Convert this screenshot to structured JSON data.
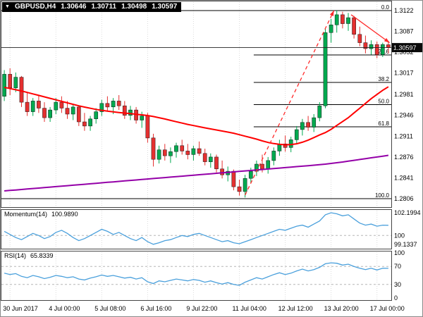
{
  "title_overlay": {
    "dropdown_icon": "▼",
    "symbol": "GBPUSD,H4",
    "open": "1.30646",
    "high": "1.30711",
    "low": "1.30498",
    "close": "1.30597"
  },
  "colors": {
    "up": "#00A94F",
    "down": "#E53030",
    "ma_fast": "#FF0000",
    "ma_slow": "#9400A8",
    "indicator": "#4AA0DC",
    "fib": "#000000",
    "grid": "#DADADA",
    "trend": "#FF2A2A",
    "bid_line": "#222222",
    "axis_text": "#000000"
  },
  "chart_data": [
    {
      "type": "candlestick",
      "title": "GBPUSD,H4",
      "ylim": [
        1.2792,
        1.3136
      ],
      "y_ticks": [
        "1.3122",
        "1.3087",
        "1.3052",
        "1.3017",
        "1.2981",
        "1.2946",
        "1.2911",
        "1.2876",
        "1.2841",
        "1.2806"
      ],
      "x_ticks": [
        {
          "label": "30 Jun 2017",
          "bar": 1
        },
        {
          "label": "4 Jul 00:00",
          "bar": 9
        },
        {
          "label": "5 Jul 08:00",
          "bar": 17
        },
        {
          "label": "6 Jul 16:00",
          "bar": 25
        },
        {
          "label": "9 Jul 22:00",
          "bar": 33
        },
        {
          "label": "11 Jul 04:00",
          "bar": 41
        },
        {
          "label": "12 Jul 12:00",
          "bar": 49
        },
        {
          "label": "13 Jul 20:00",
          "bar": 57
        },
        {
          "label": "17 Jul 00:00",
          "bar": 65
        }
      ],
      "current_price": "1.30597",
      "current_price_value": 1.30597,
      "fibonacci": {
        "start_bar": 44,
        "levels": [
          {
            "label": "0.0",
            "price": 1.3122,
            "full_width": true
          },
          {
            "label": "23.6",
            "price": 1.30474,
            "full_width": false
          },
          {
            "label": "38.2",
            "price": 1.30013,
            "full_width": false
          },
          {
            "label": "50.0",
            "price": 1.2964,
            "full_width": false
          },
          {
            "label": "61.8",
            "price": 1.29267,
            "full_width": false
          },
          {
            "label": "100.0",
            "price": 1.2806,
            "full_width": true
          }
        ]
      },
      "annotations": {
        "trendline": {
          "from_bar": 42,
          "from_price": 1.2812,
          "to_bar": 57.5,
          "to_price": 1.3122,
          "style": "dashed"
        },
        "pullback_arrow": {
          "from_bar": 60.5,
          "from_price": 1.3115,
          "to_bar": 67.2,
          "to_price": 1.3068,
          "style": "solid"
        }
      },
      "ohlc": [
        [
          1.2978,
          1.3022,
          1.297,
          1.3015
        ],
        [
          1.3015,
          1.3025,
          1.298,
          1.2992
        ],
        [
          1.2992,
          1.3018,
          1.2985,
          1.301
        ],
        [
          1.301,
          1.3012,
          1.296,
          1.2968
        ],
        [
          1.2968,
          1.2985,
          1.2945,
          1.2952
        ],
        [
          1.2952,
          1.2975,
          1.2945,
          1.297
        ],
        [
          1.297,
          1.298,
          1.295,
          1.2958
        ],
        [
          1.2958,
          1.2968,
          1.2935,
          1.2942
        ],
        [
          1.2942,
          1.296,
          1.2935,
          1.2955
        ],
        [
          1.2955,
          1.2975,
          1.2948,
          1.2968
        ],
        [
          1.2968,
          1.2978,
          1.295,
          1.2958
        ],
        [
          1.2958,
          1.297,
          1.294,
          1.2948
        ],
        [
          1.2948,
          1.2965,
          1.2938,
          1.296
        ],
        [
          1.296,
          1.2962,
          1.2928,
          1.2935
        ],
        [
          1.2935,
          1.295,
          1.292,
          1.2928
        ],
        [
          1.2928,
          1.2945,
          1.292,
          1.294
        ],
        [
          1.294,
          1.2958,
          1.2932,
          1.2952
        ],
        [
          1.2952,
          1.2972,
          1.2945,
          1.2966
        ],
        [
          1.2966,
          1.2978,
          1.2952,
          1.296
        ],
        [
          1.296,
          1.2975,
          1.2948,
          1.297
        ],
        [
          1.297,
          1.298,
          1.2955,
          1.2962
        ],
        [
          1.2962,
          1.297,
          1.294,
          1.2946
        ],
        [
          1.2946,
          1.2962,
          1.2938,
          1.2955
        ],
        [
          1.2955,
          1.296,
          1.2932,
          1.2938
        ],
        [
          1.2938,
          1.2952,
          1.2925,
          1.2945
        ],
        [
          1.2945,
          1.295,
          1.29,
          1.2908
        ],
        [
          1.2908,
          1.2915,
          1.286,
          1.2872
        ],
        [
          1.2872,
          1.2895,
          1.2865,
          1.2888
        ],
        [
          1.2888,
          1.2898,
          1.287,
          1.2878
        ],
        [
          1.2878,
          1.2892,
          1.2866,
          1.2885
        ],
        [
          1.2885,
          1.29,
          1.2875,
          1.2895
        ],
        [
          1.2895,
          1.2905,
          1.288,
          1.2886
        ],
        [
          1.2886,
          1.2898,
          1.2872,
          1.288
        ],
        [
          1.288,
          1.2895,
          1.287,
          1.289
        ],
        [
          1.289,
          1.2902,
          1.2878,
          1.2882
        ],
        [
          1.2882,
          1.289,
          1.2862,
          1.2868
        ],
        [
          1.2868,
          1.2882,
          1.2858,
          1.2876
        ],
        [
          1.2876,
          1.288,
          1.285,
          1.2856
        ],
        [
          1.2856,
          1.287,
          1.284,
          1.2846
        ],
        [
          1.2846,
          1.286,
          1.2835,
          1.2852
        ],
        [
          1.2852,
          1.2855,
          1.282,
          1.2826
        ],
        [
          1.2826,
          1.2838,
          1.2811,
          1.2818
        ],
        [
          1.2818,
          1.2846,
          1.2808,
          1.284
        ],
        [
          1.284,
          1.2858,
          1.2832,
          1.2852
        ],
        [
          1.2852,
          1.287,
          1.2844,
          1.2864
        ],
        [
          1.2864,
          1.288,
          1.285,
          1.2856
        ],
        [
          1.2856,
          1.2876,
          1.2848,
          1.287
        ],
        [
          1.287,
          1.2892,
          1.2862,
          1.2886
        ],
        [
          1.2886,
          1.2905,
          1.2878,
          1.2898
        ],
        [
          1.2898,
          1.2912,
          1.2885,
          1.2892
        ],
        [
          1.2892,
          1.291,
          1.2884,
          1.2905
        ],
        [
          1.2905,
          1.2928,
          1.2898,
          1.2922
        ],
        [
          1.2922,
          1.294,
          1.2912,
          1.2934
        ],
        [
          1.2934,
          1.2945,
          1.292,
          1.2926
        ],
        [
          1.2926,
          1.2948,
          1.2918,
          1.2942
        ],
        [
          1.2942,
          1.2968,
          1.2936,
          1.2962
        ],
        [
          1.2962,
          1.3092,
          1.2958,
          1.3085
        ],
        [
          1.3085,
          1.3108,
          1.3068,
          1.3098
        ],
        [
          1.3098,
          1.3122,
          1.3085,
          1.3115
        ],
        [
          1.3115,
          1.312,
          1.3092,
          1.31
        ],
        [
          1.31,
          1.3118,
          1.3088,
          1.311
        ],
        [
          1.311,
          1.3113,
          1.3075,
          1.3082
        ],
        [
          1.3082,
          1.3095,
          1.3062,
          1.3068
        ],
        [
          1.3068,
          1.308,
          1.305,
          1.3058
        ],
        [
          1.3058,
          1.3072,
          1.3048,
          1.3065
        ],
        [
          1.3065,
          1.307,
          1.3042,
          1.3048
        ],
        [
          1.3048,
          1.3068,
          1.3044,
          1.3065
        ],
        [
          1.30646,
          1.30711,
          1.30498,
          1.30597
        ]
      ],
      "series": [
        {
          "name": "ma-fast",
          "values": [
            1.2993,
            1.2991,
            1.2989,
            1.2987,
            1.29845,
            1.2982,
            1.29795,
            1.2977,
            1.29745,
            1.2972,
            1.29695,
            1.2967,
            1.29645,
            1.2962,
            1.29598,
            1.29578,
            1.2956,
            1.29544,
            1.2953,
            1.29518,
            1.29508,
            1.29498,
            1.29488,
            1.29478,
            1.29468,
            1.29456,
            1.2944,
            1.2942,
            1.29398,
            1.29375,
            1.29352,
            1.2933,
            1.29308,
            1.29288,
            1.29268,
            1.2925,
            1.29232,
            1.29214,
            1.29196,
            1.29178,
            1.2916,
            1.29135,
            1.2911,
            1.29085,
            1.2906,
            1.2903,
            1.29005,
            1.28985,
            1.28972,
            1.28965,
            1.28968,
            1.28982,
            1.29008,
            1.29044,
            1.29086,
            1.2913,
            1.2917,
            1.29225,
            1.2929,
            1.29355,
            1.2942,
            1.295,
            1.2958,
            1.2966,
            1.2974,
            1.2981,
            1.2988,
            1.2994
          ]
        },
        {
          "name": "ma-slow",
          "values": [
            1.2819,
            1.28198,
            1.28206,
            1.28214,
            1.28222,
            1.2823,
            1.28238,
            1.28246,
            1.28254,
            1.28262,
            1.2827,
            1.28278,
            1.28286,
            1.28294,
            1.28302,
            1.2831,
            1.28318,
            1.28326,
            1.28334,
            1.28342,
            1.2835,
            1.28358,
            1.28366,
            1.28374,
            1.28382,
            1.2839,
            1.28398,
            1.28406,
            1.28414,
            1.28422,
            1.2843,
            1.28438,
            1.28446,
            1.28454,
            1.28462,
            1.2847,
            1.28478,
            1.28486,
            1.28494,
            1.28502,
            1.2851,
            1.28518,
            1.28526,
            1.28534,
            1.28542,
            1.2855,
            1.28558,
            1.28566,
            1.28574,
            1.28582,
            1.2859,
            1.28598,
            1.28606,
            1.28614,
            1.28622,
            1.2863,
            1.2864,
            1.28652,
            1.28664,
            1.28676,
            1.2869,
            1.28704,
            1.28718,
            1.28732,
            1.28746,
            1.2876,
            1.28774,
            1.28788
          ]
        }
      ]
    },
    {
      "type": "line",
      "label": "Momentum(14)",
      "value": "100.9890",
      "y_ticks": [
        "102.1994",
        "100",
        "99.1337"
      ],
      "level_lines": [
        100
      ],
      "values": [
        100.4,
        100.1,
        99.8,
        99.6,
        99.9,
        100.2,
        100.0,
        99.7,
        99.9,
        100.3,
        100.5,
        100.2,
        99.8,
        99.5,
        99.7,
        100.0,
        100.3,
        100.6,
        100.4,
        100.1,
        100.3,
        100.0,
        99.7,
        99.5,
        99.8,
        99.4,
        99.15,
        99.3,
        99.5,
        99.6,
        99.8,
        100.0,
        99.9,
        100.1,
        100.2,
        100.0,
        99.8,
        99.6,
        99.4,
        99.5,
        99.3,
        99.2,
        99.4,
        99.6,
        99.8,
        100.0,
        100.2,
        100.4,
        100.6,
        100.5,
        100.7,
        100.9,
        101.0,
        100.8,
        101.1,
        101.4,
        102.0,
        102.2,
        102.1,
        101.9,
        102.0,
        101.6,
        101.2,
        101.0,
        101.1,
        100.9,
        101.0,
        100.99
      ]
    },
    {
      "type": "line",
      "label": "RSI(14)",
      "value": "65.8339",
      "y_ticks": [
        "100",
        "70",
        "30",
        "0"
      ],
      "level_lines": [
        70,
        30
      ],
      "values": [
        55,
        52,
        54,
        48,
        45,
        50,
        47,
        43,
        46,
        50,
        48,
        45,
        47,
        42,
        40,
        44,
        47,
        51,
        48,
        50,
        47,
        44,
        46,
        42,
        45,
        36,
        32,
        38,
        36,
        39,
        42,
        40,
        38,
        41,
        39,
        35,
        38,
        34,
        31,
        34,
        30,
        28,
        35,
        40,
        45,
        42,
        47,
        52,
        56,
        52,
        55,
        60,
        64,
        60,
        63,
        68,
        76,
        78,
        77,
        73,
        75,
        70,
        66,
        63,
        66,
        62,
        66,
        65.83
      ]
    }
  ]
}
